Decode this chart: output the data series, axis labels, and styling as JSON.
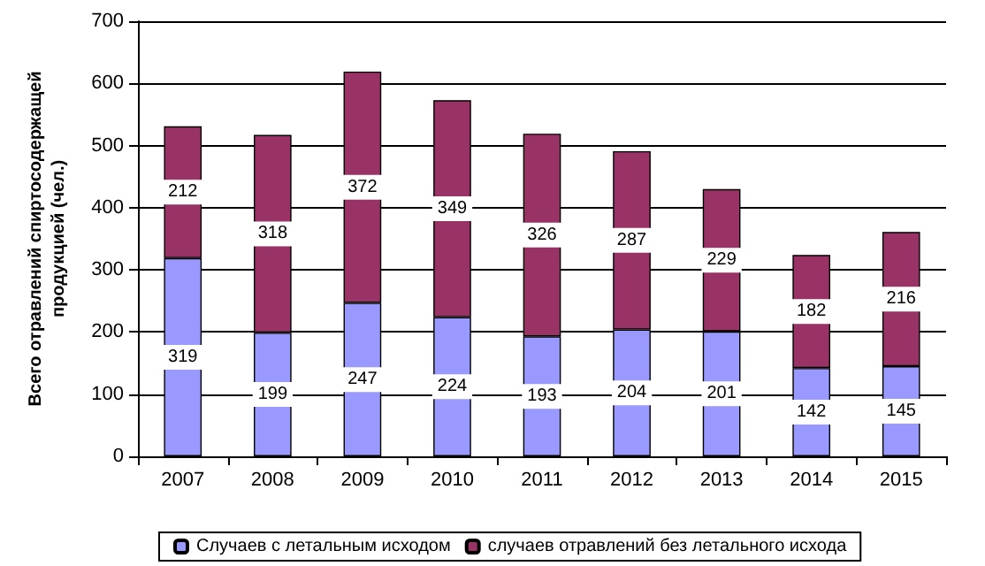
{
  "chart_data": {
    "type": "bar",
    "stacked": true,
    "ylabel": "Всего отравлений спиртосодержащей\nпродукцией (чел.)",
    "categories": [
      "2007",
      "2008",
      "2009",
      "2010",
      "2011",
      "2012",
      "2013",
      "2014",
      "2015"
    ],
    "series": [
      {
        "name": "Случаев с летальным исходом",
        "color": "#9999ff",
        "values": [
          319,
          199,
          247,
          224,
          193,
          204,
          201,
          142,
          145
        ]
      },
      {
        "name": "случаев отравлений без летального исхода",
        "color": "#993366",
        "values": [
          212,
          318,
          372,
          349,
          326,
          287,
          229,
          182,
          216
        ]
      }
    ],
    "ylim": [
      0,
      700
    ],
    "yticks": [
      0,
      100,
      200,
      300,
      400,
      500,
      600,
      700
    ],
    "grid": "y",
    "legend": "bottom",
    "data_labels": true
  }
}
